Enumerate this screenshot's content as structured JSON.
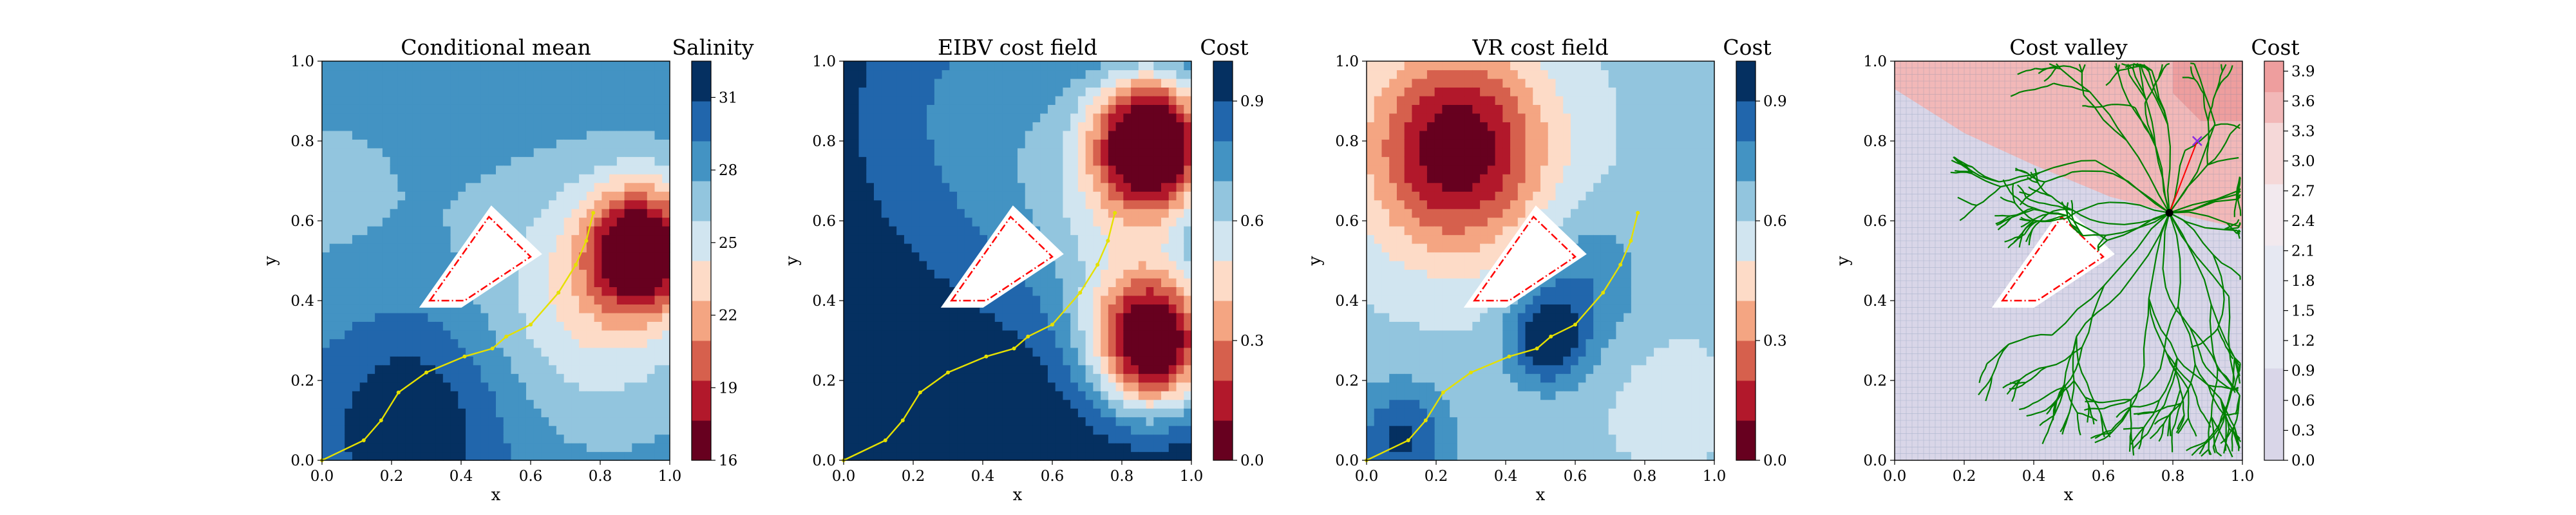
{
  "figure": {
    "title": "",
    "colors": {
      "rdbu": [
        "#67001f",
        "#b2182b",
        "#d6604d",
        "#f4a582",
        "#fddbc7",
        "#f7f7f7",
        "#d1e5f0",
        "#92c5de",
        "#4393c3",
        "#2166ac",
        "#053061"
      ],
      "cost_valley": [
        "#d9d6e8",
        "#e6e8f2",
        "#f2e9ee",
        "#f5d8d8",
        "#f2b8b8",
        "#ee9e9e"
      ],
      "obstacle_edge": "#ff0000",
      "path": "#e5e000",
      "tree": "#008000",
      "hub": "#000000",
      "target": "#8a2be2",
      "mesh": "#5f7fa0"
    }
  },
  "chart_data": [
    {
      "type": "heatmap",
      "title": "Conditional mean",
      "xlabel": "x",
      "ylabel": "y",
      "xlim": [
        0.0,
        1.0
      ],
      "ylim": [
        0.0,
        1.0
      ],
      "xticks": [
        "0.0",
        "0.2",
        "0.4",
        "0.6",
        "0.8",
        "1.0"
      ],
      "yticks": [
        "0.0",
        "0.2",
        "0.4",
        "0.6",
        "0.8",
        "1.0"
      ],
      "colorbar": {
        "label": "Salinity",
        "min": 16,
        "max": 32.5,
        "ticks": [
          "16",
          "19",
          "22",
          "25",
          "28",
          "31"
        ],
        "tick_values": [
          16,
          19,
          22,
          25,
          28,
          31
        ],
        "reverse_colormap": true
      },
      "field": {
        "kind": "salinity",
        "base": 28.5,
        "blobs": [
          {
            "x": 0.92,
            "y": 0.53,
            "sigma": 0.11,
            "amp": -12.5
          },
          {
            "x": 0.78,
            "y": 0.4,
            "sigma": 0.22,
            "amp": -4.5
          },
          {
            "x": 0.25,
            "y": 0.1,
            "sigma": 0.2,
            "amp": 4.0
          },
          {
            "x": 0.02,
            "y": 0.62,
            "sigma": 0.3,
            "amp": -1.2
          }
        ]
      },
      "obstacle": [
        [
          0.31,
          0.4
        ],
        [
          0.48,
          0.61
        ],
        [
          0.6,
          0.51
        ],
        [
          0.41,
          0.4
        ]
      ],
      "path": [
        [
          0.0,
          0.0
        ],
        [
          0.12,
          0.05
        ],
        [
          0.17,
          0.1
        ],
        [
          0.22,
          0.17
        ],
        [
          0.3,
          0.22
        ],
        [
          0.41,
          0.26
        ],
        [
          0.49,
          0.28
        ],
        [
          0.53,
          0.31
        ],
        [
          0.6,
          0.34
        ],
        [
          0.68,
          0.42
        ],
        [
          0.73,
          0.49
        ],
        [
          0.76,
          0.55
        ],
        [
          0.78,
          0.62
        ]
      ]
    },
    {
      "type": "heatmap",
      "title": "EIBV cost field",
      "xlabel": "x",
      "ylabel": "y",
      "xlim": [
        0.0,
        1.0
      ],
      "ylim": [
        0.0,
        1.0
      ],
      "xticks": [
        "0.0",
        "0.2",
        "0.4",
        "0.6",
        "0.8",
        "1.0"
      ],
      "yticks": [
        "0.0",
        "0.2",
        "0.4",
        "0.6",
        "0.8",
        "1.0"
      ],
      "colorbar": {
        "label": "Cost",
        "min": 0.0,
        "max": 1.0,
        "ticks": [
          "0.0",
          "0.3",
          "0.6",
          "0.9"
        ],
        "tick_values": [
          0.0,
          0.3,
          0.6,
          0.9
        ],
        "reverse_colormap": false
      },
      "field": {
        "kind": "cost",
        "base": 1.0,
        "blobs": [
          {
            "x": 0.89,
            "y": 0.8,
            "sigma": 0.12,
            "amp": -1.05
          },
          {
            "x": 0.89,
            "y": 0.29,
            "sigma": 0.12,
            "amp": -1.0
          },
          {
            "x": 0.8,
            "y": 0.55,
            "sigma": 0.2,
            "amp": -0.3
          },
          {
            "x": 0.45,
            "y": 0.85,
            "sigma": 0.3,
            "amp": -0.25
          }
        ]
      },
      "obstacle": [
        [
          0.31,
          0.4
        ],
        [
          0.48,
          0.61
        ],
        [
          0.6,
          0.51
        ],
        [
          0.41,
          0.4
        ]
      ],
      "path": [
        [
          0.0,
          0.0
        ],
        [
          0.12,
          0.05
        ],
        [
          0.17,
          0.1
        ],
        [
          0.22,
          0.17
        ],
        [
          0.3,
          0.22
        ],
        [
          0.41,
          0.26
        ],
        [
          0.49,
          0.28
        ],
        [
          0.53,
          0.31
        ],
        [
          0.6,
          0.34
        ],
        [
          0.68,
          0.42
        ],
        [
          0.73,
          0.49
        ],
        [
          0.76,
          0.55
        ],
        [
          0.78,
          0.62
        ]
      ]
    },
    {
      "type": "heatmap",
      "title": "VR cost field",
      "xlabel": "x",
      "ylabel": "y",
      "xlim": [
        0.0,
        1.0
      ],
      "ylim": [
        0.0,
        1.0
      ],
      "xticks": [
        "0.0",
        "0.2",
        "0.4",
        "0.6",
        "0.8",
        "1.0"
      ],
      "yticks": [
        "0.0",
        "0.2",
        "0.4",
        "0.6",
        "0.8",
        "1.0"
      ],
      "colorbar": {
        "label": "Cost",
        "min": 0.0,
        "max": 1.0,
        "ticks": [
          "0.0",
          "0.3",
          "0.6",
          "0.9"
        ],
        "tick_values": [
          0.0,
          0.3,
          0.6,
          0.9
        ],
        "reverse_colormap": false
      },
      "field": {
        "kind": "cost",
        "base": 0.62,
        "blobs": [
          {
            "x": 0.26,
            "y": 0.78,
            "sigma": 0.18,
            "amp": -0.62
          },
          {
            "x": 0.62,
            "y": 0.45,
            "sigma": 0.12,
            "amp": 0.18
          },
          {
            "x": 0.86,
            "y": 0.15,
            "sigma": 0.12,
            "amp": -0.06
          },
          {
            "x": 0.52,
            "y": 0.3,
            "sigma": 0.08,
            "amp": 0.35
          },
          {
            "x": 0.1,
            "y": 0.05,
            "sigma": 0.1,
            "amp": 0.3
          }
        ]
      },
      "obstacle": [
        [
          0.31,
          0.4
        ],
        [
          0.48,
          0.61
        ],
        [
          0.6,
          0.51
        ],
        [
          0.41,
          0.4
        ]
      ],
      "path": [
        [
          0.0,
          0.0
        ],
        [
          0.12,
          0.05
        ],
        [
          0.17,
          0.1
        ],
        [
          0.22,
          0.17
        ],
        [
          0.3,
          0.22
        ],
        [
          0.41,
          0.26
        ],
        [
          0.49,
          0.28
        ],
        [
          0.53,
          0.31
        ],
        [
          0.6,
          0.34
        ],
        [
          0.68,
          0.42
        ],
        [
          0.73,
          0.49
        ],
        [
          0.76,
          0.55
        ],
        [
          0.78,
          0.62
        ]
      ]
    },
    {
      "type": "heatmap",
      "title": "Cost valley",
      "xlabel": "x",
      "ylabel": "y",
      "xlim": [
        0.0,
        1.0
      ],
      "ylim": [
        0.0,
        1.0
      ],
      "xticks": [
        "0.0",
        "0.2",
        "0.4",
        "0.6",
        "0.8",
        "1.0"
      ],
      "yticks": [
        "0.0",
        "0.2",
        "0.4",
        "0.6",
        "0.8",
        "1.0"
      ],
      "colorbar": {
        "label": "Cost",
        "min": 0.0,
        "max": 4.0,
        "ticks": [
          "0.0",
          "0.3",
          "0.6",
          "0.9",
          "1.2",
          "1.5",
          "1.8",
          "2.1",
          "2.4",
          "2.7",
          "3.0",
          "3.3",
          "3.6",
          "3.9"
        ],
        "tick_values": [
          0.0,
          0.3,
          0.6,
          0.9,
          1.2,
          1.5,
          1.8,
          2.1,
          2.4,
          2.7,
          3.0,
          3.3,
          3.6,
          3.9
        ],
        "reverse_colormap": false
      },
      "regions": {
        "pink_boundary": [
          [
            0.0,
            0.93
          ],
          [
            0.2,
            0.82
          ],
          [
            0.4,
            0.74
          ],
          [
            0.62,
            0.66
          ],
          [
            0.8,
            0.62
          ],
          [
            1.0,
            0.58
          ]
        ],
        "pink_dark_corner": [
          [
            0.8,
            1.0
          ],
          [
            1.0,
            1.0
          ],
          [
            1.0,
            0.85
          ],
          [
            0.88,
            0.85
          ],
          [
            0.8,
            0.92
          ]
        ]
      },
      "tree": {
        "hub": [
          0.79,
          0.62
        ],
        "target": [
          0.87,
          0.8
        ],
        "seed": 7,
        "branches": 26
      },
      "obstacle": [
        [
          0.31,
          0.4
        ],
        [
          0.48,
          0.61
        ],
        [
          0.6,
          0.51
        ],
        [
          0.41,
          0.4
        ]
      ]
    }
  ]
}
